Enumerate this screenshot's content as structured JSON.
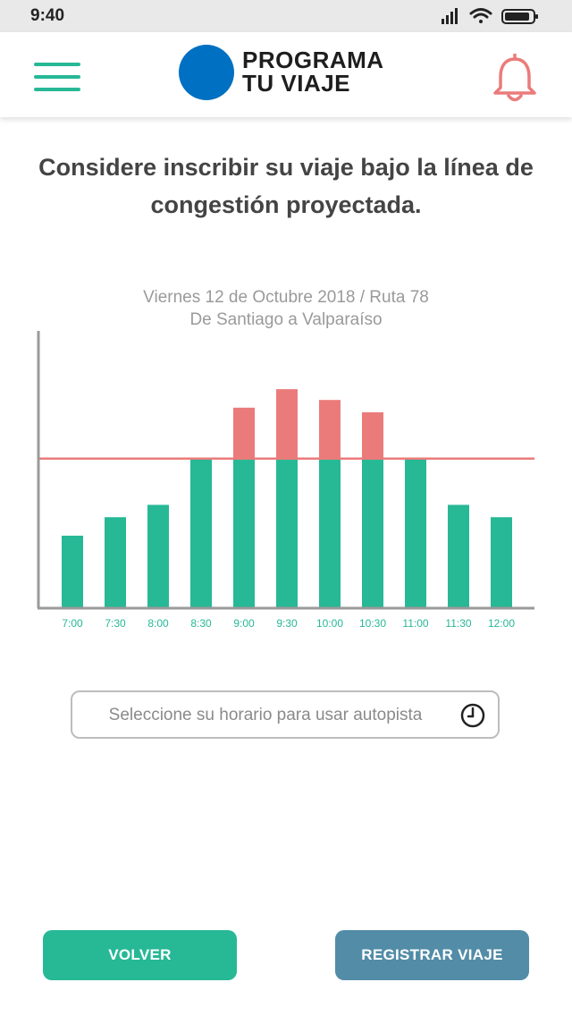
{
  "status_bar": {
    "time": "9:40",
    "icons": [
      "signal-icon",
      "wifi-icon",
      "battery-icon"
    ]
  },
  "header": {
    "menu_icon": "menu-icon",
    "logo": {
      "line1": "PROGRAMA",
      "line2": "TU VIAJE"
    },
    "bell_icon": "bell-icon"
  },
  "main": {
    "headline": "Considere inscribir su viaje bajo la línea de congestión proyectada.",
    "time_input": {
      "placeholder": "Seleccione su horario para usar autopista",
      "value": ""
    }
  },
  "buttons": {
    "back_label": "VOLVER",
    "register_label": "REGISTRAR VIAJE"
  },
  "colors": {
    "accent_green": "#27b896",
    "congestion_red": "#eb7b7b",
    "register_blue": "#528ca7",
    "logo_blue": "#0070c2"
  },
  "chart_data": {
    "type": "bar",
    "subtitle_line1": "Viernes 12 de Octubre 2018 / Ruta 78",
    "subtitle_line2": "De Santiago a Valparaíso",
    "categories": [
      "7:00",
      "7:30",
      "8:00",
      "8:30",
      "9:00",
      "9:30",
      "10:00",
      "10:30",
      "11:00",
      "11:30",
      "12:00"
    ],
    "values": [
      47,
      59,
      67,
      97,
      130,
      142,
      135,
      127,
      97,
      67,
      59
    ],
    "congestion_threshold": 97,
    "ylim": [
      0,
      180
    ],
    "grid": false,
    "legend": "none"
  }
}
